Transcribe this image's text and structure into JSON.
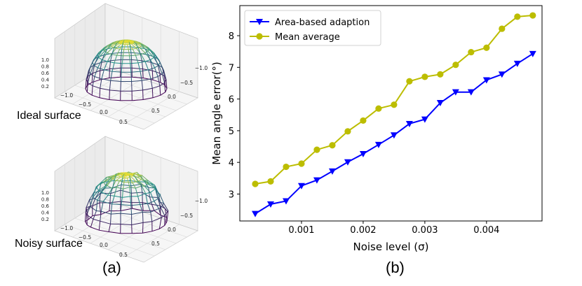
{
  "panels": {
    "a": {
      "label": "(a)",
      "surfaces": [
        {
          "caption": "Ideal surface",
          "noisy": false
        },
        {
          "caption": "Noisy surface",
          "noisy": true
        }
      ],
      "z_ticks": [
        "1.0",
        "0.8",
        "0.6",
        "0.4",
        "0.2"
      ],
      "x_ticks": [
        "−1.0",
        "−0.5",
        "0.0",
        "0.5"
      ],
      "y_ticks": [
        "−1.0",
        "−0.5",
        "0.0",
        "0.5"
      ]
    },
    "b": {
      "label": "(b)"
    }
  },
  "colors": {
    "area_series": "#0000ff",
    "mean_series": "#bcbd00",
    "dome_top": "#fde725",
    "dome_mid": "#21918c",
    "dome_bottom": "#440154"
  },
  "chart_data": {
    "type": "line",
    "title": "",
    "xlabel": "Noise level (σ)",
    "ylabel": "Mean angle error(°)",
    "xlim": [
      0.0,
      0.0049
    ],
    "ylim": [
      2.15,
      8.95
    ],
    "x_ticks": [
      0.001,
      0.002,
      0.003,
      0.004
    ],
    "x_tick_labels": [
      "0.001",
      "0.002",
      "0.003",
      "0.004"
    ],
    "y_ticks": [
      3,
      4,
      5,
      6,
      7,
      8
    ],
    "y_tick_labels": [
      "3",
      "4",
      "5",
      "6",
      "7",
      "8"
    ],
    "legend": "top-left",
    "x": [
      0.00025,
      0.0005,
      0.00075,
      0.001,
      0.00125,
      0.0015,
      0.00175,
      0.002,
      0.00225,
      0.0025,
      0.00275,
      0.003,
      0.00325,
      0.0035,
      0.00375,
      0.004,
      0.00425,
      0.0045,
      0.00475
    ],
    "series": [
      {
        "name": "Area-based adaption",
        "marker": "triangle-down",
        "values": [
          2.38,
          2.68,
          2.78,
          3.26,
          3.44,
          3.72,
          4.01,
          4.27,
          4.56,
          4.86,
          5.22,
          5.36,
          5.88,
          6.22,
          6.22,
          6.6,
          6.78,
          7.12,
          7.43
        ]
      },
      {
        "name": "Mean average",
        "marker": "circle",
        "values": [
          3.32,
          3.4,
          3.86,
          3.96,
          4.4,
          4.54,
          4.98,
          5.32,
          5.7,
          5.82,
          6.56,
          6.7,
          6.78,
          7.08,
          7.48,
          7.62,
          8.22,
          8.6,
          8.64
        ]
      }
    ]
  }
}
